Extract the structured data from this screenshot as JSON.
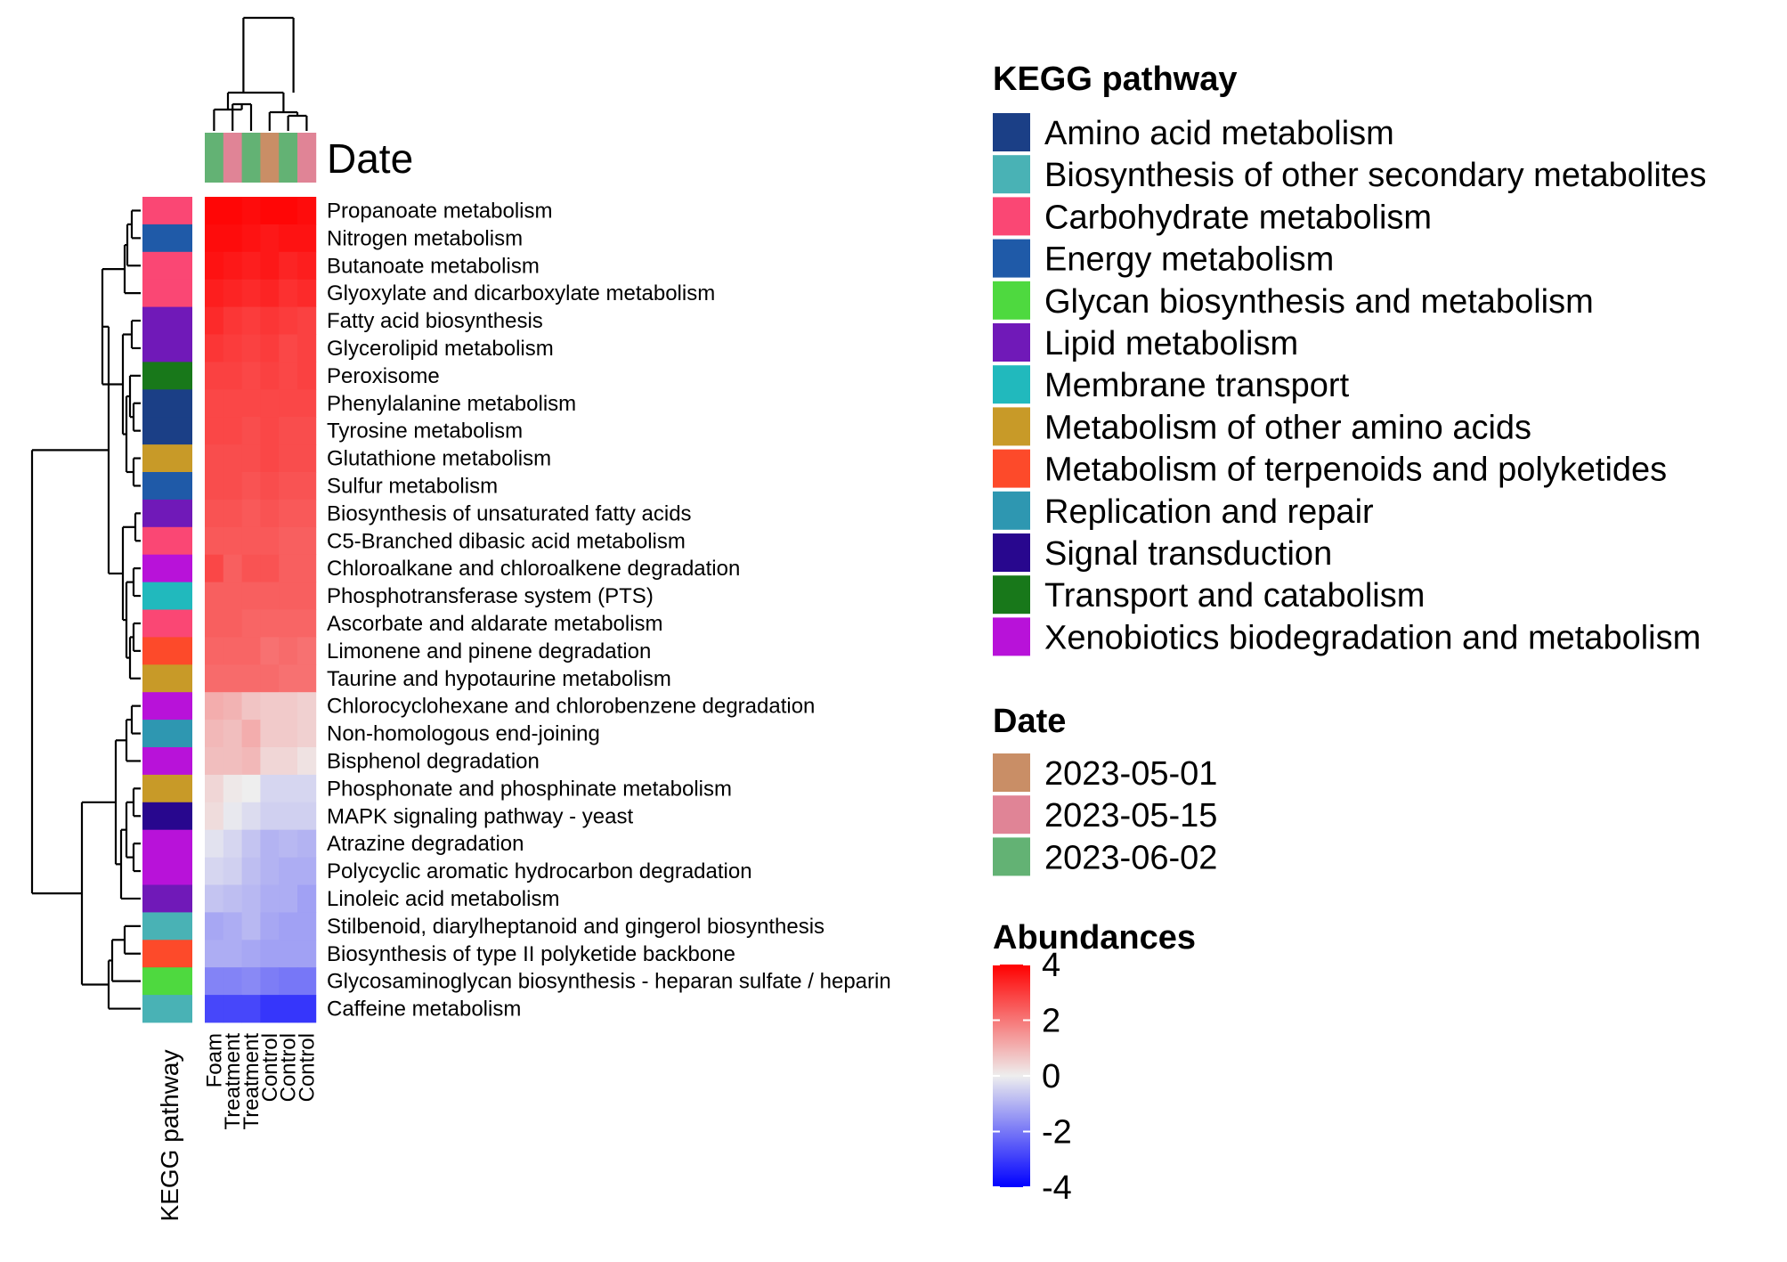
{
  "chart_data": {
    "type": "heatmap",
    "title": "",
    "columns": [
      "Foam",
      "Treatment",
      "Treatment",
      "Control",
      "Control",
      "Control"
    ],
    "column_dates": [
      "2023-06-02",
      "2023-05-15",
      "2023-06-02",
      "2023-05-01",
      "2023-06-02",
      "2023-05-15"
    ],
    "column_annotation_title": "Date",
    "row_annotation_title": "KEGG pathway",
    "rows": [
      {
        "label": "Propanoate metabolism",
        "pathway": "Carbohydrate metabolism",
        "values": [
          3.9,
          3.9,
          3.8,
          3.9,
          3.9,
          3.8
        ]
      },
      {
        "label": "Nitrogen metabolism",
        "pathway": "Energy metabolism",
        "values": [
          3.8,
          3.8,
          3.7,
          3.6,
          3.7,
          3.7
        ]
      },
      {
        "label": "Butanoate metabolism",
        "pathway": "Carbohydrate metabolism",
        "values": [
          3.7,
          3.6,
          3.5,
          3.6,
          3.4,
          3.5
        ]
      },
      {
        "label": "Glyoxylate and dicarboxylate metabolism",
        "pathway": "Carbohydrate metabolism",
        "values": [
          3.5,
          3.4,
          3.3,
          3.4,
          3.2,
          3.3
        ]
      },
      {
        "label": "Fatty acid biosynthesis",
        "pathway": "Lipid metabolism",
        "values": [
          3.3,
          3.1,
          3.0,
          3.1,
          3.0,
          2.9
        ]
      },
      {
        "label": "Glycerolipid metabolism",
        "pathway": "Lipid metabolism",
        "values": [
          3.1,
          3.0,
          2.9,
          3.0,
          2.8,
          2.9
        ]
      },
      {
        "label": "Peroxisome",
        "pathway": "Transport and catabolism",
        "values": [
          2.9,
          2.9,
          2.8,
          2.9,
          2.8,
          2.9
        ]
      },
      {
        "label": "Phenylalanine metabolism",
        "pathway": "Amino acid metabolism",
        "values": [
          2.8,
          2.8,
          2.8,
          2.8,
          2.8,
          2.8
        ]
      },
      {
        "label": "Tyrosine metabolism",
        "pathway": "Amino acid metabolism",
        "values": [
          2.8,
          2.8,
          2.7,
          2.8,
          2.7,
          2.7
        ]
      },
      {
        "label": "Glutathione metabolism",
        "pathway": "Metabolism of other amino acids",
        "values": [
          2.7,
          2.7,
          2.7,
          2.8,
          2.7,
          2.7
        ]
      },
      {
        "label": "Sulfur metabolism",
        "pathway": "Energy metabolism",
        "values": [
          2.7,
          2.7,
          2.6,
          2.7,
          2.6,
          2.6
        ]
      },
      {
        "label": "Biosynthesis of unsaturated fatty acids",
        "pathway": "Lipid metabolism",
        "values": [
          2.6,
          2.6,
          2.5,
          2.6,
          2.5,
          2.5
        ]
      },
      {
        "label": "C5-Branched dibasic acid metabolism",
        "pathway": "Carbohydrate metabolism",
        "values": [
          2.5,
          2.5,
          2.5,
          2.5,
          2.4,
          2.4
        ]
      },
      {
        "label": "Chloroalkane and chloroalkene degradation",
        "pathway": "Xenobiotics biodegradation and metabolism",
        "values": [
          2.8,
          2.4,
          2.6,
          2.6,
          2.4,
          2.4
        ]
      },
      {
        "label": "Phosphotransferase system (PTS)",
        "pathway": "Membrane transport",
        "values": [
          2.4,
          2.4,
          2.4,
          2.4,
          2.4,
          2.4
        ]
      },
      {
        "label": "Ascorbate and aldarate metabolism",
        "pathway": "Carbohydrate metabolism",
        "values": [
          2.4,
          2.4,
          2.3,
          2.3,
          2.3,
          2.3
        ]
      },
      {
        "label": "Limonene and pinene degradation",
        "pathway": "Metabolism of terpenoids and polyketides",
        "values": [
          2.3,
          2.3,
          2.3,
          2.1,
          2.2,
          2.1
        ]
      },
      {
        "label": "Taurine and hypotaurine metabolism",
        "pathway": "Metabolism of other amino acids",
        "values": [
          2.2,
          2.2,
          2.2,
          2.2,
          2.1,
          2.1
        ]
      },
      {
        "label": "Chlorocyclohexane and chlorobenzene degradation",
        "pathway": "Xenobiotics biodegradation and metabolism",
        "values": [
          1.1,
          1.0,
          0.7,
          0.6,
          0.6,
          0.5
        ]
      },
      {
        "label": "Non-homologous end-joining",
        "pathway": "Replication and repair",
        "values": [
          0.9,
          0.8,
          1.1,
          0.6,
          0.6,
          0.5
        ]
      },
      {
        "label": "Bisphenol degradation",
        "pathway": "Xenobiotics biodegradation and metabolism",
        "values": [
          0.8,
          0.8,
          0.9,
          0.4,
          0.4,
          0.2
        ]
      },
      {
        "label": "Phosphonate and phosphinate metabolism",
        "pathway": "Metabolism of other amino acids",
        "values": [
          0.4,
          0.1,
          0.0,
          -0.4,
          -0.4,
          -0.4
        ]
      },
      {
        "label": "MAPK signaling pathway - yeast",
        "pathway": "Signal transduction",
        "values": [
          0.3,
          -0.1,
          -0.3,
          -0.5,
          -0.5,
          -0.5
        ]
      },
      {
        "label": "Atrazine degradation",
        "pathway": "Xenobiotics biodegradation and metabolism",
        "values": [
          -0.2,
          -0.4,
          -0.7,
          -1.0,
          -0.9,
          -1.0
        ]
      },
      {
        "label": "Polycyclic aromatic hydrocarbon degradation",
        "pathway": "Xenobiotics biodegradation and metabolism",
        "values": [
          -0.4,
          -0.5,
          -0.8,
          -1.0,
          -1.1,
          -1.1
        ]
      },
      {
        "label": "Linoleic acid metabolism",
        "pathway": "Lipid metabolism",
        "values": [
          -0.7,
          -0.8,
          -0.9,
          -1.1,
          -1.1,
          -1.3
        ]
      },
      {
        "label": "Stilbenoid, diarylheptanoid and gingerol biosynthesis",
        "pathway": "Biosynthesis of other secondary metabolites",
        "values": [
          -1.2,
          -1.1,
          -0.9,
          -1.2,
          -1.3,
          -1.3
        ]
      },
      {
        "label": "Biosynthesis of type II polyketide backbone",
        "pathway": "Metabolism of terpenoids and polyketides",
        "values": [
          -1.1,
          -1.1,
          -1.2,
          -1.3,
          -1.3,
          -1.3
        ]
      },
      {
        "label": "Glycosaminoglycan biosynthesis - heparan sulfate / heparin",
        "pathway": "Glycan biosynthesis and metabolism",
        "values": [
          -1.8,
          -1.8,
          -1.7,
          -1.9,
          -2.0,
          -2.0
        ]
      },
      {
        "label": "Caffeine metabolism",
        "pathway": "Biosynthesis of other secondary metabolites",
        "values": [
          -2.8,
          -2.8,
          -2.8,
          -3.1,
          -3.1,
          -3.1
        ]
      }
    ],
    "color_scale": {
      "title": "Abundances",
      "min": -4,
      "max": 4,
      "ticks": [
        4,
        2,
        0,
        -2,
        -4
      ],
      "low_color": "#0000ff",
      "mid_color": "#eeeeee",
      "high_color": "#ff0000"
    },
    "legends": {
      "pathway_title": "KEGG pathway",
      "pathway_items": [
        {
          "label": "Amino acid metabolism",
          "color": "#1b3f86"
        },
        {
          "label": "Biosynthesis of other secondary metabolites",
          "color": "#49b2b5"
        },
        {
          "label": "Carbohydrate metabolism",
          "color": "#fa4774"
        },
        {
          "label": "Energy metabolism",
          "color": "#1f5aa8"
        },
        {
          "label": "Glycan biosynthesis and metabolism",
          "color": "#4ed93f"
        },
        {
          "label": "Lipid metabolism",
          "color": "#7019b8"
        },
        {
          "label": "Membrane transport",
          "color": "#21b9bd"
        },
        {
          "label": "Metabolism of other amino acids",
          "color": "#c89a28"
        },
        {
          "label": "Metabolism of terpenoids and polyketides",
          "color": "#fd4a2a"
        },
        {
          "label": "Replication and repair",
          "color": "#2e97b1"
        },
        {
          "label": "Signal transduction",
          "color": "#28078e"
        },
        {
          "label": "Transport and catabolism",
          "color": "#18781a"
        },
        {
          "label": "Xenobiotics biodegradation and metabolism",
          "color": "#b812d9"
        }
      ],
      "date_title": "Date",
      "date_items": [
        {
          "label": "2023-05-01",
          "color": "#c98e66"
        },
        {
          "label": "2023-05-15",
          "color": "#e08496"
        },
        {
          "label": "2023-06-02",
          "color": "#63b274"
        }
      ]
    }
  }
}
